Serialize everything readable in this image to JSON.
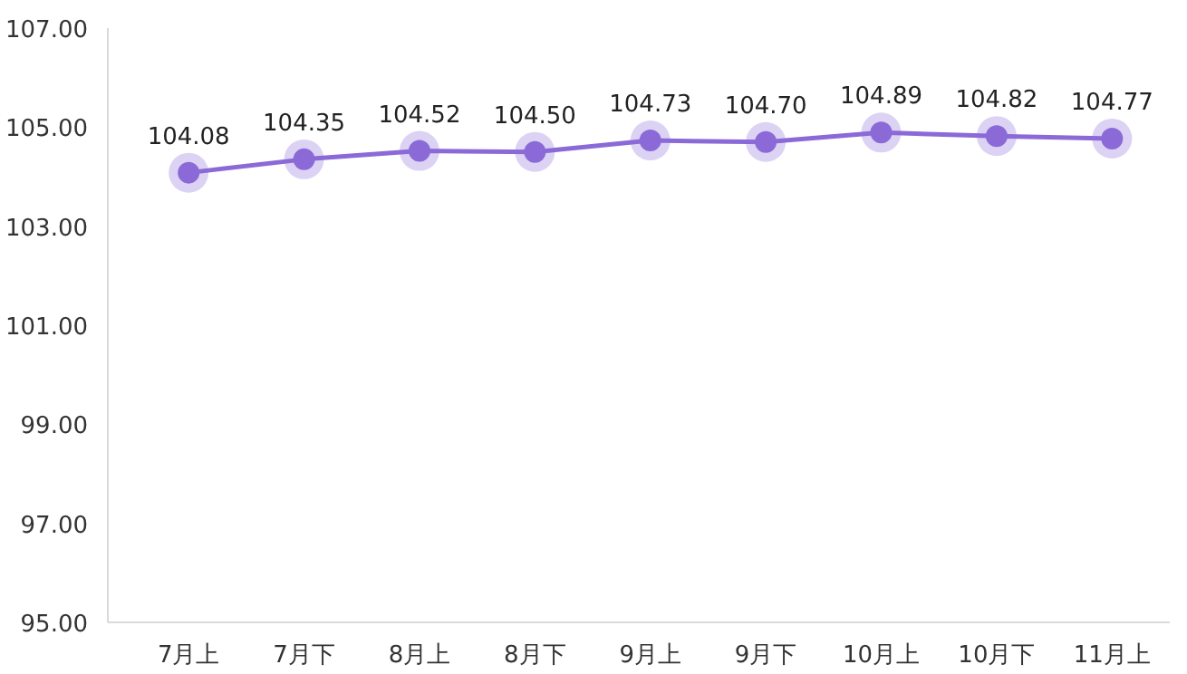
{
  "chart_data": {
    "type": "line",
    "categories": [
      "7月上",
      "7月下",
      "8月上",
      "8月下",
      "9月上",
      "9月下",
      "10月上",
      "10月下",
      "11月上"
    ],
    "series": [
      {
        "color": "#8b6ad8",
        "values": [
          104.08,
          104.35,
          104.52,
          104.5,
          104.73,
          104.7,
          104.89,
          104.82,
          104.77
        ],
        "value_labels": [
          "104.08",
          "104.35",
          "104.52",
          "104.50",
          "104.73",
          "104.70",
          "104.89",
          "104.82",
          "104.77"
        ]
      }
    ],
    "ylim": [
      95,
      107
    ],
    "yticks": [
      {
        "value": 95,
        "label": "95.00"
      },
      {
        "value": 97,
        "label": "97.00"
      },
      {
        "value": 99,
        "label": "99.00"
      },
      {
        "value": 101,
        "label": "101.00"
      },
      {
        "value": 103,
        "label": "103.00"
      },
      {
        "value": 105,
        "label": "105.00"
      },
      {
        "value": 107,
        "label": "107.00"
      }
    ],
    "grid": false,
    "marker": "circle",
    "line_style": "solid"
  }
}
